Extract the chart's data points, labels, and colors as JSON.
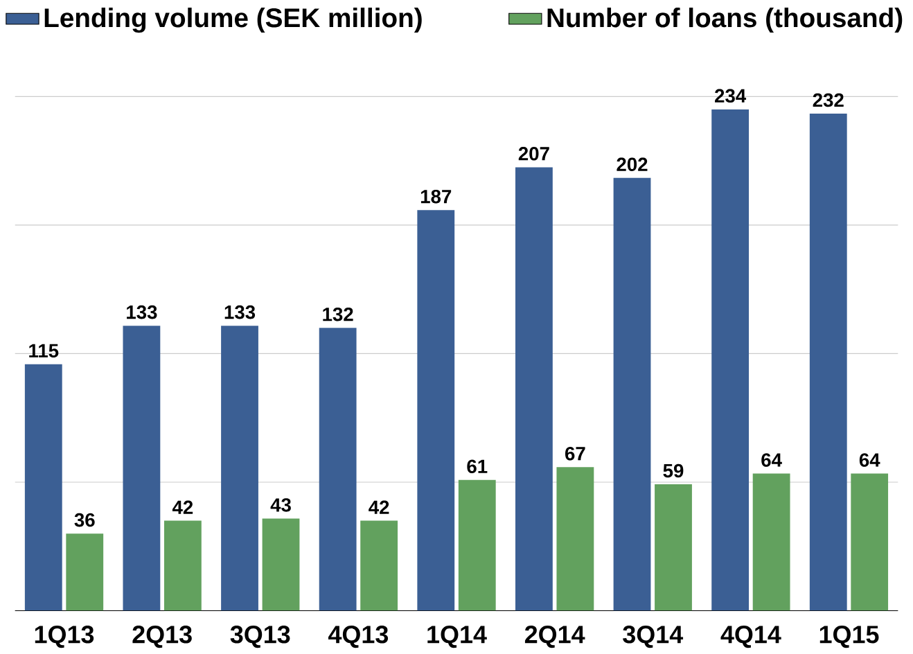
{
  "chart_data": {
    "type": "bar",
    "categories": [
      "1Q13",
      "2Q13",
      "3Q13",
      "4Q13",
      "1Q14",
      "2Q14",
      "3Q14",
      "4Q14",
      "1Q15"
    ],
    "series": [
      {
        "name": "Lending volume (SEK million)",
        "color": "#3b5f94",
        "values": [
          115,
          133,
          133,
          132,
          187,
          207,
          202,
          234,
          232
        ]
      },
      {
        "name": "Number of loans (thousand)",
        "color": "#62a15e",
        "values": [
          36,
          42,
          43,
          42,
          61,
          67,
          59,
          64,
          64
        ]
      }
    ],
    "yticks": [
      {
        "value": 0,
        "label": null
      },
      {
        "value": 60,
        "label": null
      },
      {
        "value": 120,
        "label": null
      },
      {
        "value": 180,
        "label": null
      },
      {
        "value": 240,
        "label": null
      }
    ],
    "tick_labels": "x",
    "grid": "y",
    "legend": "top",
    "data_labels": true
  }
}
